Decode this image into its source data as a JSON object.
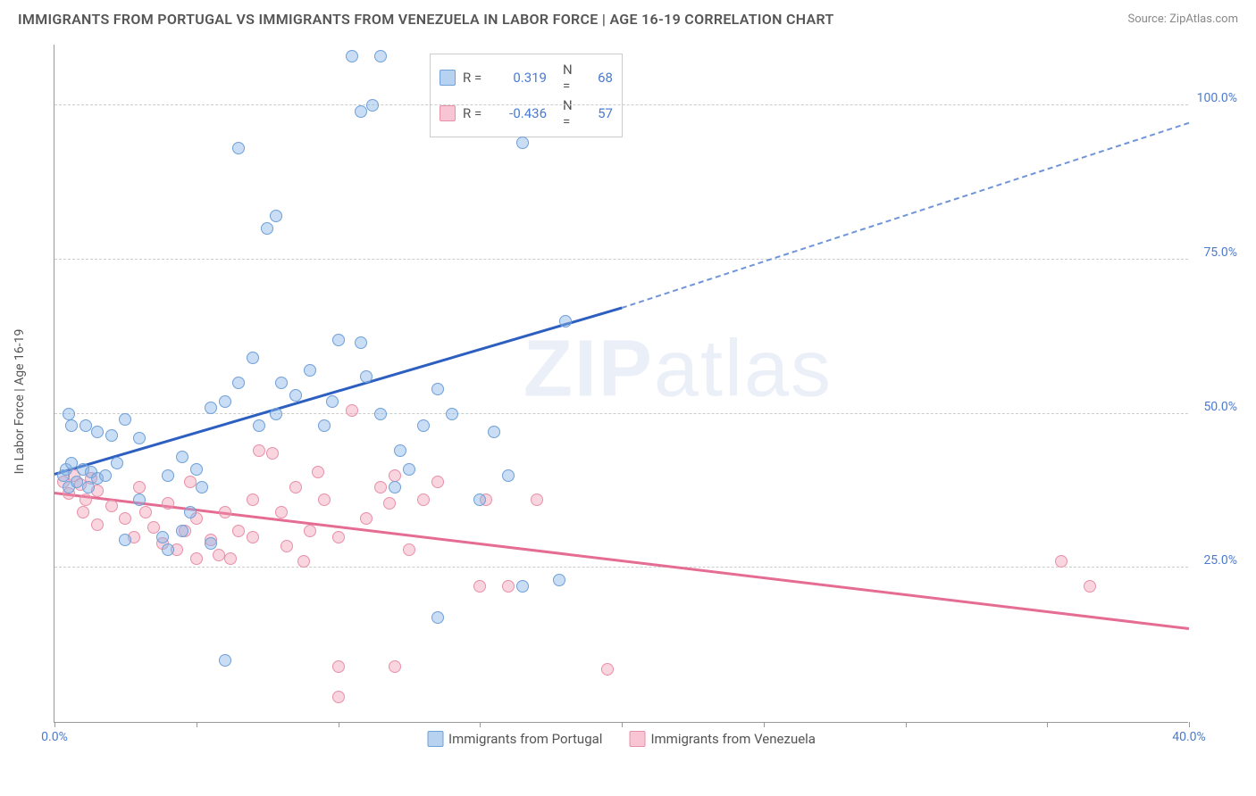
{
  "header": {
    "title": "IMMIGRANTS FROM PORTUGAL VS IMMIGRANTS FROM VENEZUELA IN LABOR FORCE | AGE 16-19 CORRELATION CHART",
    "source": "Source: ZipAtlas.com"
  },
  "watermark": {
    "bold": "ZIP",
    "light": "atlas"
  },
  "chart": {
    "type": "scatter",
    "ylabel": "In Labor Force | Age 16-19",
    "xlim": [
      0,
      40
    ],
    "ylim": [
      0,
      110
    ],
    "xtick_positions": [
      0,
      5,
      10,
      15,
      20,
      25,
      30,
      35,
      40
    ],
    "xtick_labels": {
      "0": "0.0%",
      "40": "40.0%"
    },
    "ytick_positions": [
      25,
      50,
      75,
      100
    ],
    "ytick_labels": {
      "25": "25.0%",
      "50": "50.0%",
      "75": "75.0%",
      "100": "100.0%"
    },
    "background_color": "#ffffff",
    "grid_color": "#cccccc",
    "series_a": {
      "label": "Immigrants from Portugal",
      "color_fill": "rgba(135,180,230,0.45)",
      "color_stroke": "#6fa0d8",
      "r": "0.319",
      "n": "68",
      "trend_color": "#2c5fc0",
      "trend_start": [
        0,
        40
      ],
      "trend_solid_end": [
        20,
        67
      ],
      "trend_dash_end": [
        40,
        97
      ],
      "points": [
        [
          0.3,
          40
        ],
        [
          0.4,
          41
        ],
        [
          0.5,
          38
        ],
        [
          0.6,
          42
        ],
        [
          0.8,
          39
        ],
        [
          1.0,
          41
        ],
        [
          1.2,
          38
        ],
        [
          1.3,
          40.5
        ],
        [
          1.5,
          39.5
        ],
        [
          0.5,
          50
        ],
        [
          0.6,
          48
        ],
        [
          1.1,
          48
        ],
        [
          1.5,
          47
        ],
        [
          2.0,
          46.5
        ],
        [
          2.5,
          49
        ],
        [
          3.0,
          46
        ],
        [
          1.8,
          40
        ],
        [
          2.2,
          42
        ],
        [
          2.5,
          29.5
        ],
        [
          3.0,
          36
        ],
        [
          3.8,
          30
        ],
        [
          4.0,
          28
        ],
        [
          4.5,
          31
        ],
        [
          4.8,
          34
        ],
        [
          4.0,
          40
        ],
        [
          4.5,
          43
        ],
        [
          5.0,
          41
        ],
        [
          5.2,
          38
        ],
        [
          5.5,
          29
        ],
        [
          6.0,
          10
        ],
        [
          5.5,
          51
        ],
        [
          6.0,
          52
        ],
        [
          6.5,
          55
        ],
        [
          7.0,
          59
        ],
        [
          7.2,
          48
        ],
        [
          7.8,
          50
        ],
        [
          8.0,
          55
        ],
        [
          8.5,
          53
        ],
        [
          9.0,
          57
        ],
        [
          9.5,
          48
        ],
        [
          9.8,
          52
        ],
        [
          10.0,
          62
        ],
        [
          10.8,
          61.5
        ],
        [
          11.0,
          56
        ],
        [
          11.5,
          50
        ],
        [
          12.0,
          38
        ],
        [
          12.2,
          44
        ],
        [
          12.5,
          41
        ],
        [
          13.0,
          48
        ],
        [
          13.5,
          54
        ],
        [
          14.0,
          50
        ],
        [
          13.5,
          17
        ],
        [
          15.0,
          36
        ],
        [
          15.5,
          47
        ],
        [
          16.0,
          40
        ],
        [
          16.5,
          22
        ],
        [
          17.8,
          23
        ],
        [
          6.5,
          93
        ],
        [
          7.5,
          80
        ],
        [
          7.8,
          82
        ],
        [
          10.5,
          108
        ],
        [
          11.5,
          108
        ],
        [
          10.8,
          99
        ],
        [
          11.2,
          100
        ],
        [
          16.5,
          94
        ],
        [
          18.0,
          65
        ]
      ]
    },
    "series_b": {
      "label": "Immigrants from Venezuela",
      "color_fill": "rgba(240,150,175,0.4)",
      "color_stroke": "#e890a8",
      "r": "-0.436",
      "n": "57",
      "trend_color": "#e56c92",
      "trend_start": [
        0,
        37
      ],
      "trend_end": [
        40,
        15
      ],
      "points": [
        [
          0.3,
          39
        ],
        [
          0.5,
          37
        ],
        [
          0.7,
          40
        ],
        [
          0.9,
          38.5
        ],
        [
          1.1,
          36
        ],
        [
          1.3,
          39.5
        ],
        [
          1.5,
          37.5
        ],
        [
          1.0,
          34
        ],
        [
          1.5,
          32
        ],
        [
          2.0,
          35
        ],
        [
          2.5,
          33
        ],
        [
          2.8,
          30
        ],
        [
          3.2,
          34
        ],
        [
          3.5,
          31.5
        ],
        [
          3.8,
          29
        ],
        [
          4.0,
          35.5
        ],
        [
          4.3,
          28
        ],
        [
          4.6,
          31
        ],
        [
          5.0,
          26.5
        ],
        [
          5.0,
          33
        ],
        [
          5.5,
          29.5
        ],
        [
          5.8,
          27
        ],
        [
          6.2,
          26.5
        ],
        [
          6.5,
          31
        ],
        [
          7.0,
          30
        ],
        [
          7.2,
          44
        ],
        [
          7.7,
          43.5
        ],
        [
          7.0,
          36
        ],
        [
          8.0,
          34
        ],
        [
          8.2,
          28.5
        ],
        [
          8.5,
          38
        ],
        [
          9.0,
          31
        ],
        [
          9.3,
          40.5
        ],
        [
          9.5,
          36
        ],
        [
          10.0,
          9
        ],
        [
          10.0,
          30
        ],
        [
          10.5,
          50.5
        ],
        [
          11.0,
          33
        ],
        [
          11.5,
          38
        ],
        [
          11.8,
          35.5
        ],
        [
          12.0,
          40
        ],
        [
          12.5,
          28
        ],
        [
          13.0,
          36
        ],
        [
          13.5,
          39
        ],
        [
          15.0,
          22
        ],
        [
          15.2,
          36
        ],
        [
          16.0,
          22
        ],
        [
          17.0,
          36
        ],
        [
          10.0,
          4
        ],
        [
          12.0,
          9
        ],
        [
          19.5,
          8.5
        ],
        [
          35.5,
          26
        ],
        [
          36.5,
          22
        ],
        [
          3.0,
          38
        ],
        [
          6.0,
          34
        ],
        [
          4.8,
          39
        ],
        [
          8.8,
          26
        ]
      ]
    }
  },
  "legend_top": {
    "rows": [
      {
        "sw": "a",
        "r_label": "R =",
        "r_val": "0.319",
        "n_label": "N =",
        "n_val": "68"
      },
      {
        "sw": "b",
        "r_label": "R =",
        "r_val": "-0.436",
        "n_label": "N =",
        "n_val": "57"
      }
    ]
  }
}
